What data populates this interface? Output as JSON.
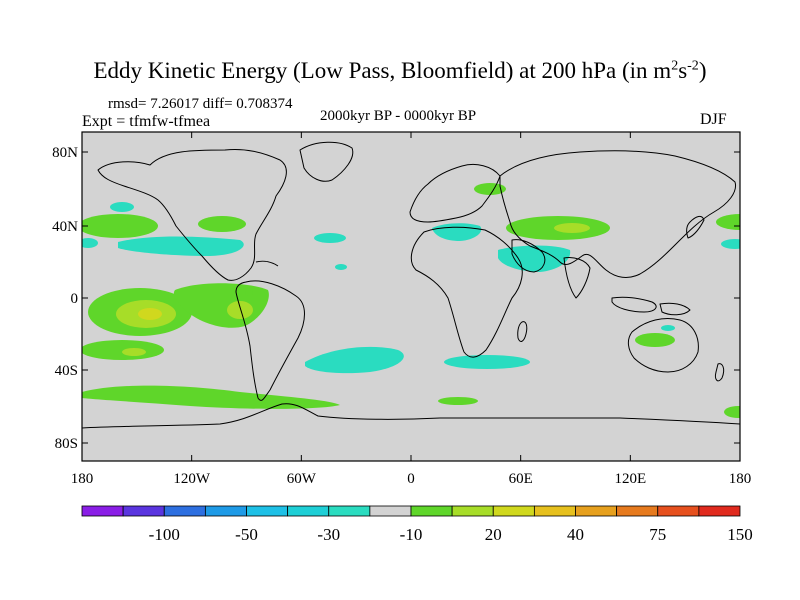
{
  "title": {
    "main": "Eddy Kinetic Energy (Low Pass, Bloomfield) at 200 hPa (in m",
    "sup1": "2",
    "mid": "s",
    "sup2": "-2",
    "end": ")"
  },
  "stats": "rmsd= 7.26017 diff= 0.708374",
  "expt": "Expt = tfmfw-tfmea",
  "period": "2000kyr BP - 0000kyr BP",
  "season": "DJF",
  "map": {
    "background": "#d3d3d3",
    "lat_ticks": [
      "80N",
      "40N",
      "0",
      "40S",
      "80S"
    ],
    "lon_ticks": [
      "180",
      "120W",
      "60W",
      "0",
      "60E",
      "120E",
      "180"
    ]
  },
  "colorbar": {
    "colors": [
      "#8a1ee6",
      "#5a35df",
      "#2d6fe0",
      "#1e9ae6",
      "#1ec0e6",
      "#1ecfd6",
      "#2adcc0",
      "#d3d3d3",
      "#5fd62a",
      "#a7dd28",
      "#d0d81e",
      "#e6c01e",
      "#e6a01e",
      "#e67a1e",
      "#e6501e",
      "#e02a1e"
    ],
    "labels": [
      "-100",
      "-50",
      "-30",
      "-10",
      "20",
      "40",
      "75",
      "150"
    ]
  }
}
